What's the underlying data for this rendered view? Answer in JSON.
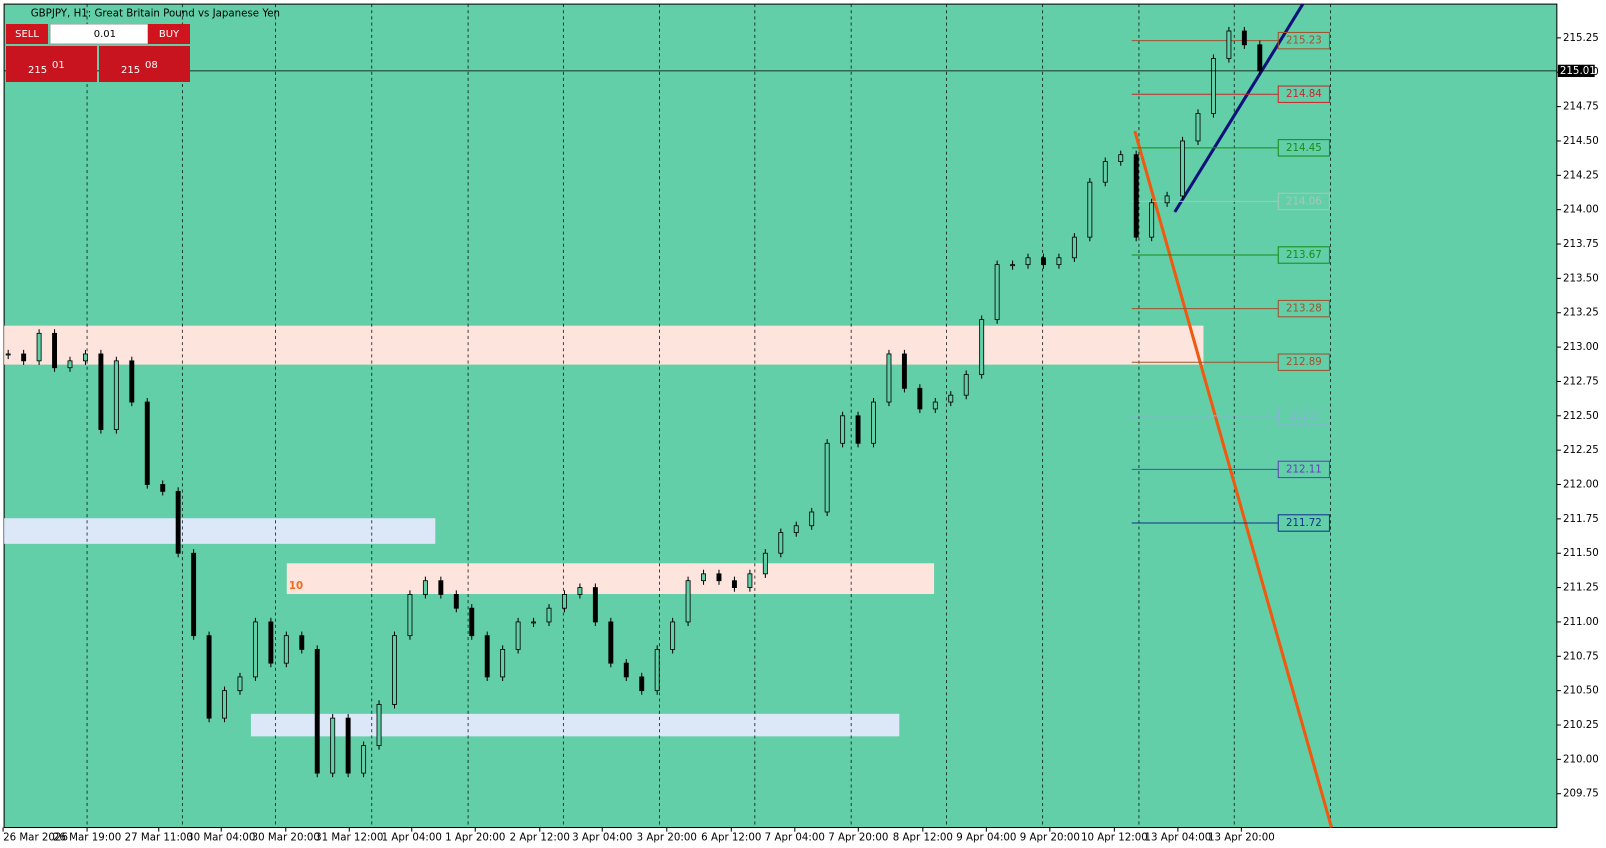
{
  "header": {
    "title": "GBPJPY, H1:  Great Britain Pound vs Japanese Yen"
  },
  "trade_panel": {
    "sell_label": "SELL",
    "buy_label": "BUY",
    "lot": "0.01",
    "bid": {
      "prefix": "215",
      "digits": "01"
    },
    "ask": {
      "prefix": "215",
      "digits": "08"
    }
  },
  "price_axis": {
    "labels": [
      {
        "value": 215.25,
        "label": "215.25"
      },
      {
        "value": 215,
        "label": "215.00"
      },
      {
        "value": 214.75,
        "label": "214.75"
      },
      {
        "value": 214.5,
        "label": "214.50"
      },
      {
        "value": 214.25,
        "label": "214.25"
      },
      {
        "value": 214,
        "label": "214.00"
      },
      {
        "value": 213.75,
        "label": "213.75"
      },
      {
        "value": 213.5,
        "label": "213.50"
      },
      {
        "value": 213.25,
        "label": "213.25"
      },
      {
        "value": 213,
        "label": "213.00"
      },
      {
        "value": 212.75,
        "label": "212.75"
      },
      {
        "value": 212.5,
        "label": "212.50"
      },
      {
        "value": 212.25,
        "label": "212.25"
      },
      {
        "value": 212,
        "label": "212.00"
      },
      {
        "value": 211.75,
        "label": "211.75"
      },
      {
        "value": 211.5,
        "label": "211.50"
      },
      {
        "value": 211.25,
        "label": "211.25"
      },
      {
        "value": 211,
        "label": "211.00"
      },
      {
        "value": 210.75,
        "label": "210.75"
      },
      {
        "value": 210.5,
        "label": "210.50"
      },
      {
        "value": 210.25,
        "label": "210.25"
      },
      {
        "value": 210,
        "label": "210.00"
      },
      {
        "value": 209.75,
        "label": "209.75"
      }
    ],
    "current": 215.01
  },
  "time_axis": {
    "labels": [
      "26 Mar 2026",
      "26 Mar 19:00",
      "27 Mar 11:00",
      "30 Mar 04:00",
      "30 Mar 20:00",
      "31 Mar 12:00",
      "1 Apr 04:00",
      "1 Apr 20:00",
      "2 Apr 12:00",
      "3 Apr 04:00",
      "3 Apr 20:00",
      "6 Apr 12:00",
      "7 Apr 04:00",
      "7 Apr 20:00",
      "8 Apr 12:00",
      "9 Apr 04:00",
      "9 Apr 20:00",
      "10 Apr 12:00",
      "13 Apr 04:00",
      "13 Apr 20:00"
    ]
  },
  "levels": [
    {
      "value": 215.23,
      "color": "#a0522d"
    },
    {
      "value": 214.84,
      "color": "#c8282d"
    },
    {
      "value": 214.45,
      "color": "#1a8a1a"
    },
    {
      "value": 214.06,
      "color": "#a8c8b8"
    },
    {
      "value": 213.67,
      "color": "#1a8a1a"
    },
    {
      "value": 213.28,
      "color": "#a0522d"
    },
    {
      "value": 212.89,
      "color": "#a0522d"
    },
    {
      "value": 212.5,
      "color": "#8ab0e0"
    },
    {
      "value": 212.11,
      "color": "#6a3ac0"
    },
    {
      "value": 211.72,
      "color": "#10308a"
    }
  ],
  "zone_label": "10",
  "closes": [
    212.95,
    212.9,
    213.1,
    212.85,
    212.9,
    212.95,
    212.4,
    212.9,
    212.6,
    212.0,
    211.95,
    211.5,
    210.9,
    210.3,
    210.5,
    210.6,
    211.0,
    210.7,
    210.9,
    210.8,
    209.9,
    210.3,
    209.9,
    210.1,
    210.4,
    210.9,
    211.2,
    211.3,
    211.2,
    211.1,
    210.9,
    210.6,
    210.8,
    211.0,
    211.0,
    211.1,
    211.2,
    211.25,
    211.0,
    210.7,
    210.6,
    210.5,
    210.8,
    211.0,
    211.3,
    211.35,
    211.3,
    211.25,
    211.35,
    211.5,
    211.65,
    211.7,
    211.8,
    212.3,
    212.5,
    212.3,
    212.6,
    212.95,
    212.7,
    212.55,
    212.6,
    212.65,
    212.8,
    213.2,
    213.6,
    213.6,
    213.65,
    213.6,
    213.65,
    213.8,
    214.2,
    214.35,
    214.4,
    213.8,
    214.05,
    214.1,
    214.5,
    214.7,
    215.1,
    215.3,
    215.2,
    215.01
  ]
}
